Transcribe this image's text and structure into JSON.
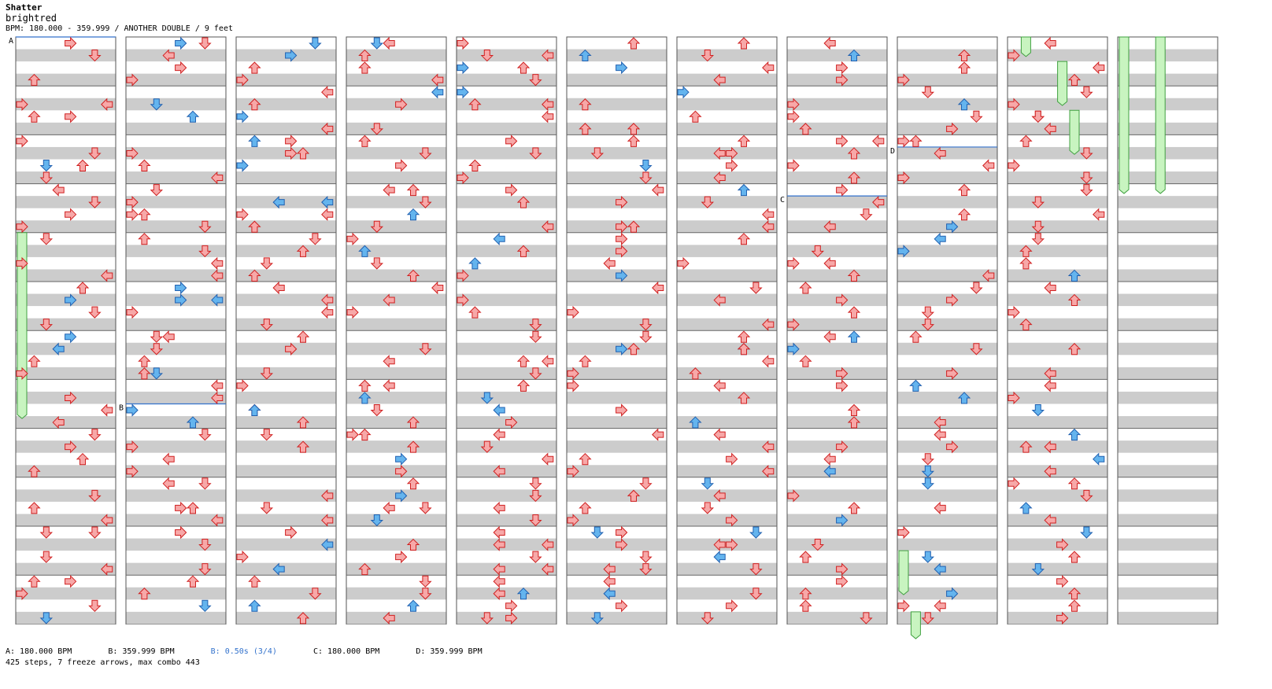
{
  "song": {
    "title": "Shatter",
    "artist": "brightred",
    "info": "BPM: 180.000 - 359.999 / ANOTHER DOUBLE / 9 feet"
  },
  "chart_data": {
    "type": "stepchart",
    "columns": 11,
    "measures_per_column": 12,
    "bpm_markers": [
      {
        "label": "A",
        "column": 0,
        "measure": 0,
        "text": "A: 180.000 BPM"
      },
      {
        "label": "B",
        "column": 1,
        "measure": 7.5,
        "text": "B: 359.999 BPM"
      },
      {
        "label": "C",
        "column": 7,
        "measure": 3.25,
        "text": "C: 180.000 BPM"
      },
      {
        "label": "D",
        "column": 8,
        "measure": 2.25,
        "text": "D: 359.999 BPM"
      }
    ],
    "stop": {
      "text": "B: 0.50s (3/4)"
    },
    "freezes": [
      {
        "column": 0,
        "lane": 0,
        "start": 4.0,
        "end": 7.8
      },
      {
        "column": 8,
        "lane": 0,
        "start": 10.5,
        "end": 11.4
      },
      {
        "column": 8,
        "lane": 1,
        "start": 11.75,
        "end": 12.3
      },
      {
        "column": 9,
        "lane": 1,
        "start": 0.0,
        "end": 0.4
      },
      {
        "column": 9,
        "lane": 4,
        "start": 0.5,
        "end": 1.4
      },
      {
        "column": 9,
        "lane": 5,
        "start": 1.5,
        "end": 2.4
      },
      {
        "column": 10,
        "lane": 0,
        "start": 0.0,
        "end": 3.2
      },
      {
        "column": 10,
        "lane": 3,
        "start": 0.0,
        "end": 3.2
      }
    ],
    "colors": {
      "arrow_red": "#f7a8a8",
      "arrow_red_stroke": "#d02020",
      "arrow_blue": "#64b4ee",
      "arrow_blue_stroke": "#2060b0",
      "freeze": "#c8f4c0",
      "freeze_stroke": "#40a040",
      "stripe": "#cccccc",
      "marker_line": "#3372cc"
    }
  },
  "footer": {
    "bpm_a": "A: 180.000 BPM",
    "bpm_b": "B: 359.999 BPM",
    "stop_b": "B: 0.50s (3/4)",
    "bpm_c": "C: 180.000 BPM",
    "bpm_d": "D: 359.999 BPM",
    "summary": "425 steps, 7 freeze arrows, max combo 443"
  }
}
